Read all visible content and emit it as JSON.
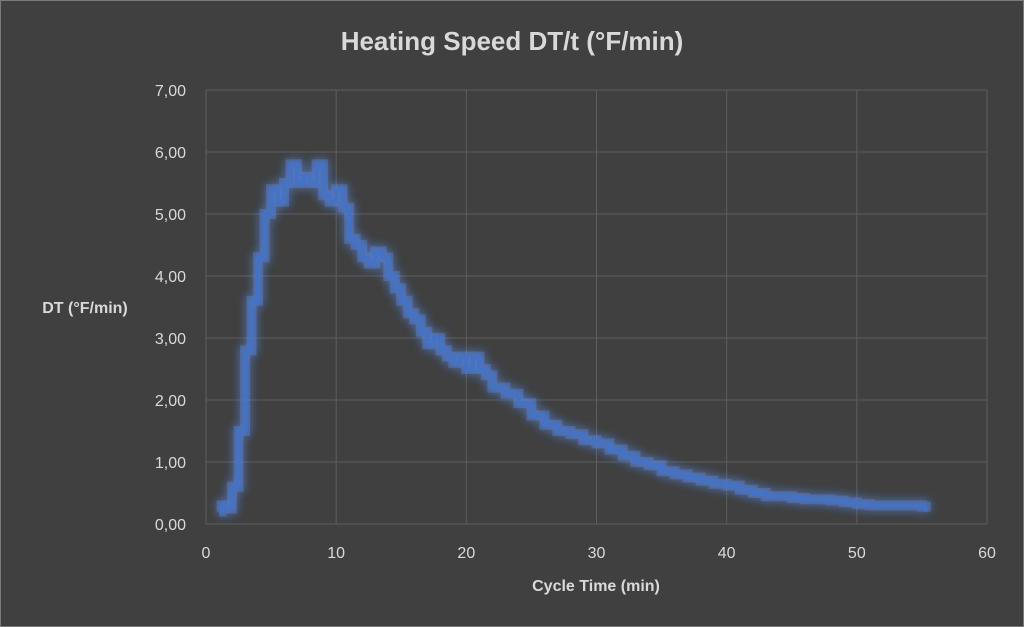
{
  "chart_data": {
    "type": "line",
    "title": "Heating Speed DT/t (°F/min)",
    "xlabel": "Cycle Time (min)",
    "ylabel": "DT (°F/min)",
    "xlim": [
      0,
      60
    ],
    "ylim": [
      0,
      7
    ],
    "x_ticks": [
      "0",
      "10",
      "20",
      "30",
      "40",
      "50",
      "60"
    ],
    "y_ticks": [
      "0,00",
      "1,00",
      "2,00",
      "3,00",
      "4,00",
      "5,00",
      "6,00",
      "7,00"
    ],
    "grid": true,
    "legend": "none",
    "colors": {
      "background": "#404040",
      "series": "#4472c4",
      "glow": "#5b8def",
      "grid": "#5e5e5e",
      "text": "#d9d9d9"
    },
    "series": [
      {
        "x": [
          1.0,
          1.2,
          1.5,
          2.0,
          2.5,
          3.0,
          3.5,
          4.0,
          4.5,
          5.0,
          5.5,
          6.0,
          6.5,
          7.0,
          7.5,
          8.0,
          8.5,
          9.0,
          9.5,
          10.0,
          10.5,
          11.0,
          11.5,
          12.0,
          12.5,
          13.0,
          13.5,
          14.0,
          14.5,
          15.0,
          15.5,
          16.0,
          16.5,
          17.0,
          17.5,
          18.0,
          18.5,
          19.0,
          19.5,
          20.0,
          20.5,
          21.0,
          21.5,
          22.0,
          22.5,
          23.0,
          24.0,
          25.0,
          26.0,
          27.0,
          28.0,
          29.0,
          30.0,
          31.0,
          32.0,
          33.0,
          34.0,
          35.0,
          36.0,
          37.0,
          38.0,
          39.0,
          40.0,
          41.0,
          42.0,
          43.0,
          44.0,
          45.0,
          46.0,
          47.0,
          48.0,
          49.0,
          50.0,
          51.0,
          52.0,
          53.0,
          54.0,
          55.0,
          55.3
        ],
        "y": [
          0.2,
          0.3,
          0.25,
          0.6,
          1.5,
          2.8,
          3.6,
          4.3,
          5.0,
          5.4,
          5.2,
          5.5,
          5.8,
          5.5,
          5.6,
          5.5,
          5.8,
          5.3,
          5.2,
          5.4,
          5.1,
          4.6,
          4.5,
          4.3,
          4.2,
          4.4,
          4.3,
          4.0,
          3.8,
          3.6,
          3.4,
          3.3,
          3.1,
          2.9,
          3.0,
          2.8,
          2.7,
          2.6,
          2.7,
          2.5,
          2.7,
          2.5,
          2.4,
          2.2,
          2.2,
          2.1,
          1.95,
          1.75,
          1.6,
          1.5,
          1.45,
          1.35,
          1.3,
          1.2,
          1.1,
          1.0,
          0.95,
          0.85,
          0.8,
          0.75,
          0.7,
          0.65,
          0.62,
          0.55,
          0.5,
          0.45,
          0.45,
          0.42,
          0.4,
          0.4,
          0.38,
          0.35,
          0.32,
          0.3,
          0.3,
          0.3,
          0.3,
          0.28,
          0.2
        ]
      }
    ]
  }
}
